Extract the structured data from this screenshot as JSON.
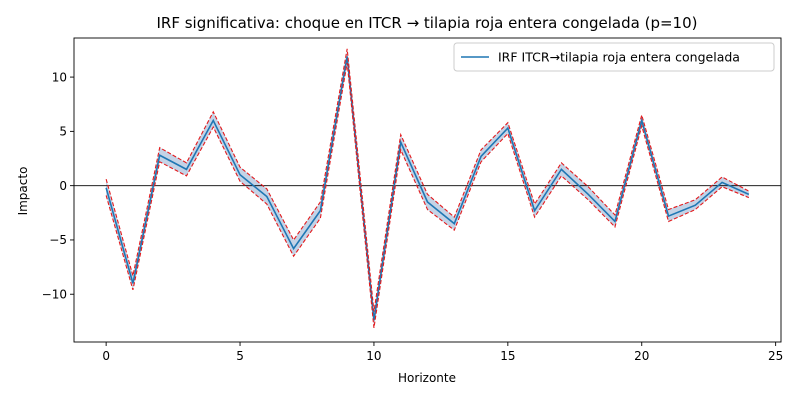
{
  "chart_data": {
    "type": "line",
    "title": "IRF significativa: choque en ITCR → tilapia roja entera congelada (p=10)",
    "xlabel": "Horizonte",
    "ylabel": "Impacto",
    "xlim": [
      -1.2,
      25.2
    ],
    "ylim": [
      -14.4,
      13.6
    ],
    "xticks": [
      0,
      5,
      10,
      15,
      20,
      25
    ],
    "yticks": [
      -10,
      -5,
      0,
      5,
      10
    ],
    "ytick_labels": [
      "−10",
      "−5",
      "0",
      "5",
      "10"
    ],
    "legend_position": "top-right",
    "zero_line": true,
    "colors": {
      "irf": "#1f77b4",
      "band": "#e41a1c",
      "fill": "#b0c4de"
    },
    "x": [
      0,
      1,
      2,
      3,
      4,
      5,
      6,
      7,
      8,
      9,
      10,
      11,
      12,
      13,
      14,
      15,
      16,
      17,
      18,
      19,
      20,
      21,
      22,
      23,
      24
    ],
    "series": [
      {
        "name": "IRF ITCR→tilapia roja entera congelada",
        "values": [
          -0.2,
          -9.0,
          2.8,
          1.5,
          6.0,
          1.0,
          -1.0,
          -5.8,
          -2.3,
          11.9,
          -12.4,
          4.0,
          -1.5,
          -3.5,
          2.7,
          5.3,
          -2.3,
          1.5,
          -0.8,
          -3.3,
          6.0,
          -2.8,
          -1.8,
          0.3,
          -0.8
        ]
      },
      {
        "role": "upper",
        "values": [
          0.6,
          -8.3,
          3.5,
          2.1,
          6.8,
          1.7,
          -0.3,
          -5.0,
          -1.5,
          12.6,
          -11.6,
          4.7,
          -0.8,
          -2.9,
          3.3,
          5.8,
          -1.7,
          2.1,
          -0.1,
          -2.7,
          6.5,
          -2.2,
          -1.3,
          0.8,
          -0.5
        ]
      },
      {
        "role": "lower",
        "values": [
          -0.9,
          -9.6,
          2.2,
          0.9,
          5.4,
          0.4,
          -1.7,
          -6.5,
          -3.0,
          11.3,
          -13.1,
          3.3,
          -2.2,
          -4.1,
          2.2,
          4.8,
          -2.9,
          0.9,
          -1.3,
          -3.8,
          5.5,
          -3.3,
          -2.2,
          -0.1,
          -1.1
        ]
      }
    ]
  }
}
